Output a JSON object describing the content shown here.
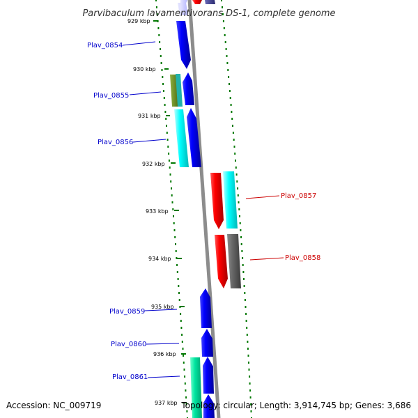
{
  "title": "Parvibaculum lavamentivorans DS-1, complete genome",
  "ticks": [
    "929 kbp",
    "930 kbp",
    "931 kbp",
    "932 kbp",
    "933 kbp",
    "934 kbp",
    "935 kbp",
    "936 kbp",
    "937 kbp"
  ],
  "genes_left": [
    {
      "label": "Plav_0854",
      "color": "#0000cc"
    },
    {
      "label": "Plav_0855",
      "color": "#0000cc"
    },
    {
      "label": "Plav_0856",
      "color": "#0000cc"
    },
    {
      "label": "Plav_0859",
      "color": "#0000cc"
    },
    {
      "label": "Plav_0860",
      "color": "#0000cc"
    },
    {
      "label": "Plav_0861",
      "color": "#0000cc"
    }
  ],
  "genes_right": [
    {
      "label": "Plav_0857",
      "color": "#cc0000"
    },
    {
      "label": "Plav_0858",
      "color": "#cc0000"
    }
  ],
  "accession": "Accession: NC_009719",
  "topology": "Topology: circular; Length: 3,914,745 bp; Genes: 3,686",
  "colors": {
    "backbone": "#888888",
    "dots": "#007700",
    "forward": "#0000ff",
    "reverse": "#ff0000",
    "cyan": "#00ffff",
    "olive": "#6b8e23",
    "teal": "#20b2aa",
    "gray": "#666666",
    "spring": "#00e5a0",
    "navy": "#3a3a8c"
  }
}
